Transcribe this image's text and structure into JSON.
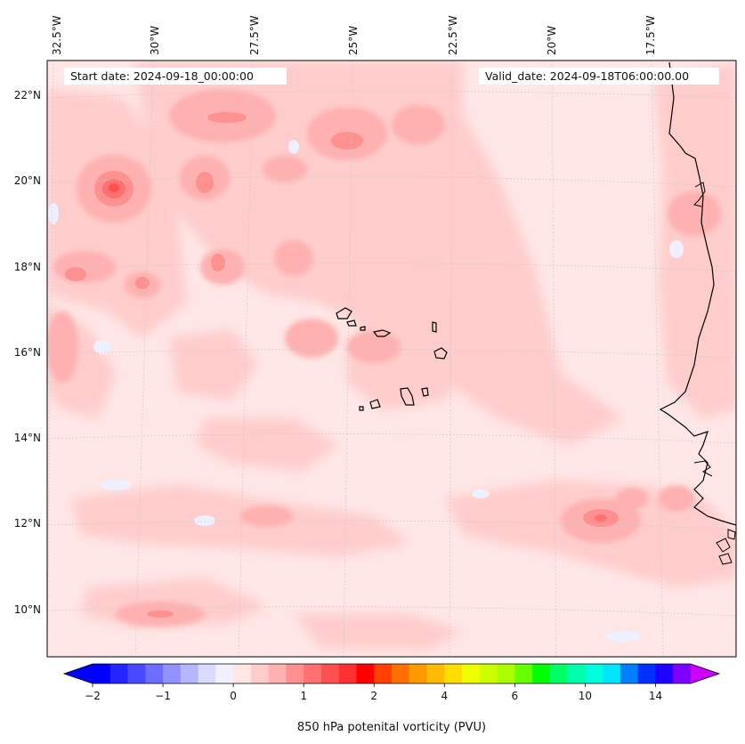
{
  "header": {
    "start_date": "Start date: 2024-09-18_00:00:00",
    "valid_date": "Valid_date: 2024-09-18T06:00:00.00"
  },
  "map": {
    "longitude_labels": [
      "32.5°W",
      "30°W",
      "27.5°W",
      "25°W",
      "22.5°W",
      "20°W",
      "17.5°W"
    ],
    "latitude_labels": [
      "22°N",
      "20°N",
      "18°N",
      "16°N",
      "14°N",
      "12°N",
      "10°N"
    ],
    "lon_range": [
      -32.5,
      -15.0
    ],
    "lat_range": [
      9.0,
      22.8
    ],
    "gridlines": true,
    "field": "850 hPa potential vorticity"
  },
  "colorbar": {
    "label": "850 hPa potenital vorticity (PVU)",
    "tick_labels": [
      "−2",
      "−1",
      "0",
      "1",
      "2",
      "4",
      "6",
      "10",
      "14"
    ],
    "colors": [
      "#0000ff",
      "#2424ff",
      "#4848ff",
      "#6d6dff",
      "#9191ff",
      "#b6b6ff",
      "#dadaff",
      "#f0f0ff",
      "#ffe6e6",
      "#ffcccc",
      "#ffb0b0",
      "#ff9090",
      "#ff7070",
      "#ff5050",
      "#ff3030",
      "#ff0000",
      "#ff4000",
      "#ff7000",
      "#ff9900",
      "#ffbb00",
      "#ffdd00",
      "#eeff00",
      "#ccff00",
      "#aaff00",
      "#66ff00",
      "#00ff00",
      "#00ff66",
      "#00ffaa",
      "#00ffdd",
      "#00e5ff",
      "#0080ff",
      "#0030ff",
      "#2000ff",
      "#8000ff"
    ],
    "under_color": "#0000ff",
    "over_color": "#cc00ff"
  }
}
